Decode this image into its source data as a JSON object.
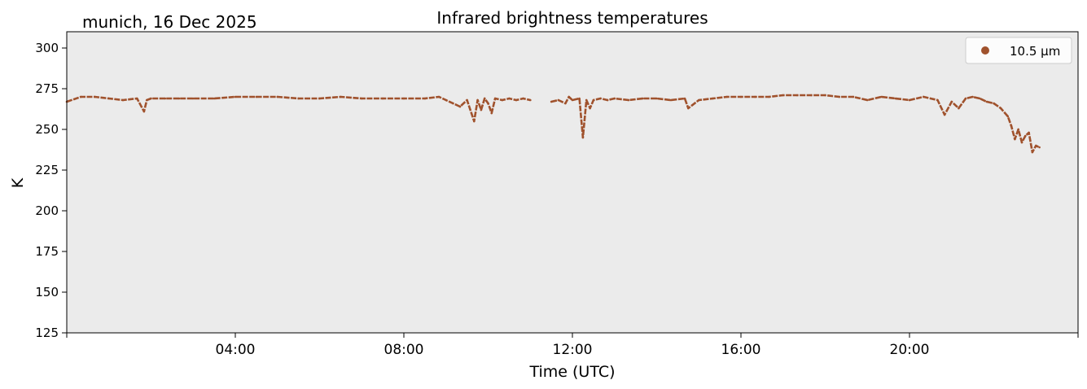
{
  "chart_data": {
    "type": "line",
    "title": "Infrared brightness temperatures",
    "subtitle": "munich, 16 Dec 2025",
    "xlabel": "Time (UTC)",
    "ylabel": "K",
    "xlim": [
      "00:00",
      "24:00"
    ],
    "ylim": [
      125,
      310
    ],
    "x_ticks": [
      "04:00",
      "08:00",
      "12:00",
      "16:00",
      "20:00"
    ],
    "y_ticks": [
      125,
      150,
      175,
      200,
      225,
      250,
      275,
      300
    ],
    "grid": false,
    "legend_position": "top-right",
    "background_color": "#ebebeb",
    "series": [
      {
        "name": "10.5 µm",
        "color": "#a0522d",
        "x": [
          "00:00",
          "00:20",
          "00:40",
          "01:00",
          "01:20",
          "01:40",
          "01:50",
          "01:54",
          "02:00",
          "02:20",
          "02:40",
          "03:00",
          "03:30",
          "04:00",
          "04:30",
          "05:00",
          "05:30",
          "06:00",
          "06:30",
          "07:00",
          "07:30",
          "08:00",
          "08:30",
          "08:50",
          "09:00",
          "09:10",
          "09:20",
          "09:30",
          "09:40",
          "09:45",
          "09:50",
          "09:55",
          "10:00",
          "10:05",
          "10:10",
          "10:20",
          "10:30",
          "10:40",
          "10:50",
          "11:00",
          "11:05",
          "11:30",
          "11:40",
          "11:50",
          "11:55",
          "12:00",
          "12:10",
          "12:15",
          "12:20",
          "12:25",
          "12:30",
          "12:40",
          "12:50",
          "13:00",
          "13:20",
          "13:40",
          "14:00",
          "14:20",
          "14:40",
          "14:45",
          "15:00",
          "15:20",
          "15:40",
          "16:00",
          "16:20",
          "16:40",
          "17:00",
          "17:20",
          "17:40",
          "18:00",
          "18:20",
          "18:40",
          "19:00",
          "19:20",
          "19:40",
          "20:00",
          "20:20",
          "20:40",
          "20:50",
          "21:00",
          "21:10",
          "21:20",
          "21:30",
          "21:40",
          "21:50",
          "22:00",
          "22:10",
          "22:20",
          "22:25",
          "22:30",
          "22:35",
          "22:40",
          "22:45",
          "22:50",
          "22:55",
          "23:00",
          "23:05"
        ],
        "y": [
          267,
          270,
          270,
          269,
          268,
          269,
          261,
          268,
          269,
          269,
          269,
          269,
          269,
          270,
          270,
          270,
          269,
          269,
          270,
          269,
          269,
          269,
          269,
          270,
          268,
          266,
          264,
          268,
          255,
          268,
          262,
          269,
          266,
          260,
          269,
          268,
          269,
          268,
          269,
          268,
          null,
          267,
          268,
          266,
          270,
          268,
          269,
          245,
          268,
          263,
          268,
          269,
          268,
          269,
          268,
          269,
          269,
          268,
          269,
          263,
          268,
          269,
          270,
          270,
          270,
          270,
          271,
          271,
          271,
          271,
          270,
          270,
          268,
          270,
          269,
          268,
          270,
          268,
          259,
          267,
          263,
          269,
          270,
          269,
          267,
          266,
          263,
          258,
          252,
          244,
          250,
          242,
          246,
          248,
          236,
          240,
          239
        ]
      }
    ]
  }
}
